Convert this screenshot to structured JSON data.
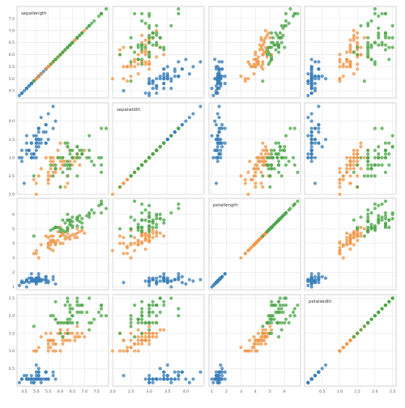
{
  "chart_data": {
    "type": "scatter",
    "variables": [
      "sepallength",
      "sepalwidth",
      "petallength",
      "petalwidth"
    ],
    "ranges": {
      "sepallength": [
        4.2,
        8.0
      ],
      "sepalwidth": [
        2.0,
        4.5
      ],
      "petallength": [
        0.8,
        7.1
      ],
      "petalwidth": [
        0.0,
        2.6
      ]
    },
    "ticks": {
      "sepallength": [
        "4.5",
        "5.0",
        "5.5",
        "6.0",
        "6.5",
        "7.0",
        "7.5"
      ],
      "sepalwidth": [
        "2.0",
        "2.5",
        "3.0",
        "3.5",
        "4.0"
      ],
      "petallength": [
        "1",
        "2",
        "3",
        "4",
        "5",
        "6"
      ],
      "petalwidth": [
        "0.5",
        "1.0",
        "1.5",
        "2.0",
        "2.5"
      ]
    },
    "grid": true,
    "series": [
      {
        "color": "#3a7fb8",
        "points": [
          [
            5.1,
            3.5,
            1.4,
            0.2
          ],
          [
            4.9,
            3.0,
            1.4,
            0.2
          ],
          [
            4.7,
            3.2,
            1.3,
            0.2
          ],
          [
            4.6,
            3.1,
            1.5,
            0.2
          ],
          [
            5.0,
            3.6,
            1.4,
            0.2
          ],
          [
            5.4,
            3.9,
            1.7,
            0.4
          ],
          [
            4.6,
            3.4,
            1.4,
            0.3
          ],
          [
            5.0,
            3.4,
            1.5,
            0.2
          ],
          [
            4.4,
            2.9,
            1.4,
            0.2
          ],
          [
            4.9,
            3.1,
            1.5,
            0.1
          ],
          [
            5.4,
            3.7,
            1.5,
            0.2
          ],
          [
            4.8,
            3.4,
            1.6,
            0.2
          ],
          [
            4.8,
            3.0,
            1.4,
            0.1
          ],
          [
            4.3,
            3.0,
            1.1,
            0.1
          ],
          [
            5.8,
            4.0,
            1.2,
            0.2
          ],
          [
            5.7,
            4.4,
            1.5,
            0.4
          ],
          [
            5.4,
            3.9,
            1.3,
            0.4
          ],
          [
            5.1,
            3.5,
            1.4,
            0.3
          ],
          [
            5.7,
            3.8,
            1.7,
            0.3
          ],
          [
            5.1,
            3.8,
            1.5,
            0.3
          ],
          [
            5.4,
            3.4,
            1.7,
            0.2
          ],
          [
            5.1,
            3.7,
            1.5,
            0.4
          ],
          [
            4.6,
            3.6,
            1.0,
            0.2
          ],
          [
            5.1,
            3.3,
            1.7,
            0.5
          ],
          [
            4.8,
            3.4,
            1.9,
            0.2
          ],
          [
            5.0,
            3.0,
            1.6,
            0.2
          ],
          [
            5.0,
            3.4,
            1.6,
            0.4
          ],
          [
            5.2,
            3.5,
            1.5,
            0.2
          ],
          [
            5.2,
            3.4,
            1.4,
            0.2
          ],
          [
            4.7,
            3.2,
            1.6,
            0.2
          ],
          [
            4.8,
            3.1,
            1.6,
            0.2
          ],
          [
            5.4,
            3.4,
            1.5,
            0.4
          ],
          [
            5.2,
            4.1,
            1.5,
            0.1
          ],
          [
            5.5,
            4.2,
            1.4,
            0.2
          ],
          [
            4.9,
            3.1,
            1.5,
            0.2
          ],
          [
            5.0,
            3.2,
            1.2,
            0.2
          ],
          [
            5.5,
            3.5,
            1.3,
            0.2
          ],
          [
            4.9,
            3.6,
            1.4,
            0.1
          ],
          [
            4.4,
            3.0,
            1.3,
            0.2
          ],
          [
            5.1,
            3.4,
            1.5,
            0.2
          ],
          [
            5.0,
            3.5,
            1.3,
            0.3
          ],
          [
            4.5,
            2.3,
            1.3,
            0.3
          ],
          [
            4.4,
            3.2,
            1.3,
            0.2
          ],
          [
            5.0,
            3.5,
            1.6,
            0.6
          ],
          [
            5.1,
            3.8,
            1.9,
            0.4
          ],
          [
            4.8,
            3.0,
            1.4,
            0.3
          ],
          [
            5.1,
            3.8,
            1.6,
            0.2
          ],
          [
            4.6,
            3.2,
            1.4,
            0.2
          ],
          [
            5.3,
            3.7,
            1.5,
            0.2
          ],
          [
            5.0,
            3.3,
            1.4,
            0.2
          ]
        ]
      },
      {
        "color": "#f0994a",
        "points": [
          [
            7.0,
            3.2,
            4.7,
            1.4
          ],
          [
            6.4,
            3.2,
            4.5,
            1.5
          ],
          [
            6.9,
            3.1,
            4.9,
            1.5
          ],
          [
            5.5,
            2.3,
            4.0,
            1.3
          ],
          [
            6.5,
            2.8,
            4.6,
            1.5
          ],
          [
            5.7,
            2.8,
            4.5,
            1.3
          ],
          [
            6.3,
            3.3,
            4.7,
            1.6
          ],
          [
            4.9,
            2.4,
            3.3,
            1.0
          ],
          [
            6.6,
            2.9,
            4.6,
            1.3
          ],
          [
            5.2,
            2.7,
            3.9,
            1.4
          ],
          [
            5.0,
            2.0,
            3.5,
            1.0
          ],
          [
            5.9,
            3.0,
            4.2,
            1.5
          ],
          [
            6.0,
            2.2,
            4.0,
            1.0
          ],
          [
            6.1,
            2.9,
            4.7,
            1.4
          ],
          [
            5.6,
            2.9,
            3.6,
            1.3
          ],
          [
            6.7,
            3.1,
            4.4,
            1.4
          ],
          [
            5.6,
            3.0,
            4.5,
            1.5
          ],
          [
            5.8,
            2.7,
            4.1,
            1.0
          ],
          [
            6.2,
            2.2,
            4.5,
            1.5
          ],
          [
            5.6,
            2.5,
            3.9,
            1.1
          ],
          [
            5.9,
            3.2,
            4.8,
            1.8
          ],
          [
            6.1,
            2.8,
            4.0,
            1.3
          ],
          [
            6.3,
            2.5,
            4.9,
            1.5
          ],
          [
            6.1,
            2.8,
            4.7,
            1.2
          ],
          [
            6.4,
            2.9,
            4.3,
            1.3
          ],
          [
            6.6,
            3.0,
            4.4,
            1.4
          ],
          [
            6.8,
            2.8,
            4.8,
            1.4
          ],
          [
            6.7,
            3.0,
            5.0,
            1.7
          ],
          [
            6.0,
            2.9,
            4.5,
            1.5
          ],
          [
            5.7,
            2.6,
            3.5,
            1.0
          ],
          [
            5.5,
            2.4,
            3.8,
            1.1
          ],
          [
            5.5,
            2.4,
            3.7,
            1.0
          ],
          [
            5.8,
            2.7,
            3.9,
            1.2
          ],
          [
            6.0,
            2.7,
            5.1,
            1.6
          ],
          [
            5.4,
            3.0,
            4.5,
            1.5
          ],
          [
            6.0,
            3.4,
            4.5,
            1.6
          ],
          [
            6.7,
            3.1,
            4.7,
            1.5
          ],
          [
            6.3,
            2.3,
            4.4,
            1.3
          ],
          [
            5.6,
            3.0,
            4.1,
            1.3
          ],
          [
            5.5,
            2.5,
            4.0,
            1.3
          ],
          [
            5.5,
            2.6,
            4.4,
            1.2
          ],
          [
            6.1,
            3.0,
            4.6,
            1.4
          ],
          [
            5.8,
            2.6,
            4.0,
            1.2
          ],
          [
            5.0,
            2.3,
            3.3,
            1.0
          ],
          [
            5.6,
            2.7,
            4.2,
            1.3
          ],
          [
            5.7,
            3.0,
            4.2,
            1.2
          ],
          [
            5.7,
            2.9,
            4.2,
            1.3
          ],
          [
            6.2,
            2.9,
            4.3,
            1.3
          ],
          [
            5.1,
            2.5,
            3.0,
            1.1
          ],
          [
            5.7,
            2.8,
            4.1,
            1.3
          ]
        ]
      },
      {
        "color": "#4ea64a",
        "points": [
          [
            6.3,
            3.3,
            6.0,
            2.5
          ],
          [
            5.8,
            2.7,
            5.1,
            1.9
          ],
          [
            7.1,
            3.0,
            5.9,
            2.1
          ],
          [
            6.3,
            2.9,
            5.6,
            1.8
          ],
          [
            6.5,
            3.0,
            5.8,
            2.2
          ],
          [
            7.6,
            3.0,
            6.6,
            2.1
          ],
          [
            4.9,
            2.5,
            4.5,
            1.7
          ],
          [
            7.3,
            2.9,
            6.3,
            1.8
          ],
          [
            6.7,
            2.5,
            5.8,
            1.8
          ],
          [
            7.2,
            3.6,
            6.1,
            2.5
          ],
          [
            6.5,
            3.2,
            5.1,
            2.0
          ],
          [
            6.4,
            2.7,
            5.3,
            1.9
          ],
          [
            6.8,
            3.0,
            5.5,
            2.1
          ],
          [
            5.7,
            2.5,
            5.0,
            2.0
          ],
          [
            5.8,
            2.8,
            5.1,
            2.4
          ],
          [
            6.4,
            3.2,
            5.3,
            2.3
          ],
          [
            6.5,
            3.0,
            5.5,
            1.8
          ],
          [
            7.7,
            3.8,
            6.7,
            2.2
          ],
          [
            7.7,
            2.6,
            6.9,
            2.3
          ],
          [
            6.0,
            2.2,
            5.0,
            1.5
          ],
          [
            6.9,
            3.2,
            5.7,
            2.3
          ],
          [
            5.6,
            2.8,
            4.9,
            2.0
          ],
          [
            7.7,
            2.8,
            6.7,
            2.0
          ],
          [
            6.3,
            2.7,
            4.9,
            1.8
          ],
          [
            6.7,
            3.3,
            5.7,
            2.1
          ],
          [
            7.2,
            3.2,
            6.0,
            1.8
          ],
          [
            6.2,
            2.8,
            4.8,
            1.8
          ],
          [
            6.1,
            3.0,
            4.9,
            1.8
          ],
          [
            6.4,
            2.8,
            5.6,
            2.1
          ],
          [
            7.2,
            3.0,
            5.8,
            1.6
          ],
          [
            7.4,
            2.8,
            6.1,
            1.9
          ],
          [
            7.9,
            3.8,
            6.4,
            2.0
          ],
          [
            6.4,
            2.8,
            5.6,
            2.2
          ],
          [
            6.3,
            2.8,
            5.1,
            1.5
          ],
          [
            6.1,
            2.6,
            5.6,
            1.4
          ],
          [
            7.7,
            3.0,
            6.1,
            2.3
          ],
          [
            6.3,
            3.4,
            5.6,
            2.4
          ],
          [
            6.4,
            3.1,
            5.5,
            1.8
          ],
          [
            6.0,
            3.0,
            4.8,
            1.8
          ],
          [
            6.9,
            3.1,
            5.4,
            2.1
          ],
          [
            6.7,
            3.1,
            5.6,
            2.4
          ],
          [
            6.9,
            3.1,
            5.1,
            2.3
          ],
          [
            5.8,
            2.7,
            5.1,
            1.9
          ],
          [
            6.8,
            3.2,
            5.9,
            2.3
          ],
          [
            6.7,
            3.3,
            5.7,
            2.5
          ],
          [
            6.7,
            3.0,
            5.2,
            2.3
          ],
          [
            6.3,
            2.5,
            5.0,
            1.9
          ],
          [
            6.5,
            3.0,
            5.2,
            2.0
          ],
          [
            6.2,
            3.4,
            5.4,
            2.3
          ],
          [
            5.9,
            3.0,
            5.1,
            1.8
          ]
        ]
      }
    ]
  }
}
